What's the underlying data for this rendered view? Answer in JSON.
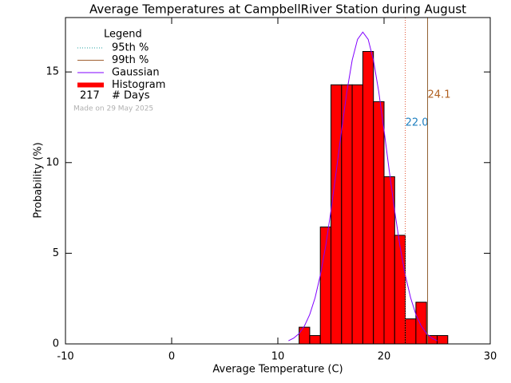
{
  "chart_data": {
    "type": "histogram",
    "title": "Average Temperatures at CampbellRiver Station during August",
    "x_label": "Average Temperature (C)",
    "y_label": "Probability (%)",
    "xlim": [
      -10,
      30
    ],
    "xticks": [
      -10,
      0,
      10,
      20,
      30
    ],
    "ylim": [
      0,
      18
    ],
    "yticks": [
      0,
      5,
      10,
      15
    ],
    "bins": [
      12,
      13,
      14,
      15,
      16,
      17,
      18,
      19,
      20,
      21,
      22,
      23,
      24,
      25,
      26
    ],
    "series": [
      {
        "name": "Histogram",
        "color": "#ff0000",
        "values": [
          0.92,
          0.46,
          6.45,
          14.29,
          14.29,
          14.29,
          16.13,
          13.36,
          9.22,
          5.99,
          1.38,
          2.3,
          0.46,
          0.46
        ]
      },
      {
        "name": "Gaussian",
        "color": "#8000ff",
        "x": [
          11,
          11.5,
          12,
          12.5,
          13,
          13.5,
          14,
          14.5,
          15,
          15.5,
          16,
          16.5,
          17,
          17.5,
          18,
          18.5,
          19,
          19.5,
          20,
          20.5,
          21,
          21.5,
          22,
          22.5,
          23,
          23.5,
          24,
          24.5,
          25
        ],
        "values": [
          0.17,
          0.32,
          0.57,
          0.99,
          1.62,
          2.54,
          3.79,
          5.4,
          7.34,
          9.52,
          11.78,
          13.9,
          15.65,
          16.8,
          17.2,
          16.8,
          15.65,
          13.9,
          11.78,
          9.52,
          7.34,
          5.4,
          3.79,
          2.54,
          1.62,
          0.99,
          0.57,
          0.32,
          0.17
        ]
      }
    ],
    "percentiles": [
      {
        "name": "95th %",
        "value": 22.0,
        "label": "22.0",
        "color": "#e05030",
        "label_color": "#2080c0",
        "legend_color": "#20a0a0",
        "dashed": true
      },
      {
        "name": "99th %",
        "value": 24.1,
        "label": "24.1",
        "color": "#906030",
        "label_color": "#b06020",
        "legend_color": "#a06030",
        "dashed": false
      }
    ],
    "legend": {
      "title": "Legend",
      "days": 217,
      "days_label": "# Days"
    },
    "footnote": "Made on 29 May 2025"
  }
}
